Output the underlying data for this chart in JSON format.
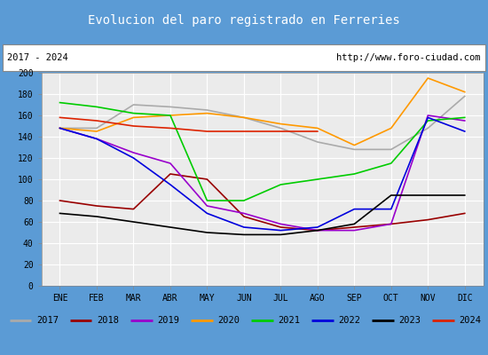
{
  "title": "Evolucion del paro registrado en Ferreries",
  "title_color": "white",
  "title_bg": "#5b9bd5",
  "subtitle_left": "2017 - 2024",
  "subtitle_right": "http://www.foro-ciudad.com",
  "months": [
    "ENE",
    "FEB",
    "MAR",
    "ABR",
    "MAY",
    "JUN",
    "JUL",
    "AGO",
    "SEP",
    "OCT",
    "NOV",
    "DIC"
  ],
  "ylim": [
    0,
    200
  ],
  "yticks": [
    0,
    20,
    40,
    60,
    80,
    100,
    120,
    140,
    160,
    180,
    200
  ],
  "series": {
    "2017": {
      "color": "#aaaaaa",
      "data": [
        148,
        148,
        170,
        168,
        165,
        158,
        148,
        135,
        128,
        128,
        148,
        178
      ]
    },
    "2018": {
      "color": "#990000",
      "data": [
        80,
        75,
        72,
        105,
        100,
        65,
        55,
        52,
        55,
        58,
        62,
        68
      ]
    },
    "2019": {
      "color": "#9900cc",
      "data": [
        148,
        138,
        125,
        115,
        75,
        68,
        58,
        52,
        52,
        58,
        160,
        155
      ]
    },
    "2020": {
      "color": "#ff9900",
      "data": [
        148,
        145,
        158,
        160,
        162,
        158,
        152,
        148,
        132,
        148,
        195,
        182
      ]
    },
    "2021": {
      "color": "#00cc00",
      "data": [
        172,
        168,
        162,
        160,
        80,
        80,
        95,
        100,
        105,
        115,
        155,
        158
      ]
    },
    "2022": {
      "color": "#0000dd",
      "data": [
        148,
        138,
        120,
        95,
        68,
        55,
        52,
        55,
        72,
        72,
        158,
        145
      ]
    },
    "2023": {
      "color": "#000000",
      "data": [
        68,
        65,
        60,
        55,
        50,
        48,
        48,
        52,
        58,
        85,
        85,
        85
      ]
    },
    "2024": {
      "color": "#dd2200",
      "data": [
        158,
        155,
        150,
        148,
        145,
        145,
        145,
        145,
        null,
        null,
        null,
        null
      ]
    }
  },
  "legend_order": [
    "2017",
    "2018",
    "2019",
    "2020",
    "2021",
    "2022",
    "2023",
    "2024"
  ],
  "bg_color": "#ebebeb",
  "grid_color": "#ffffff"
}
